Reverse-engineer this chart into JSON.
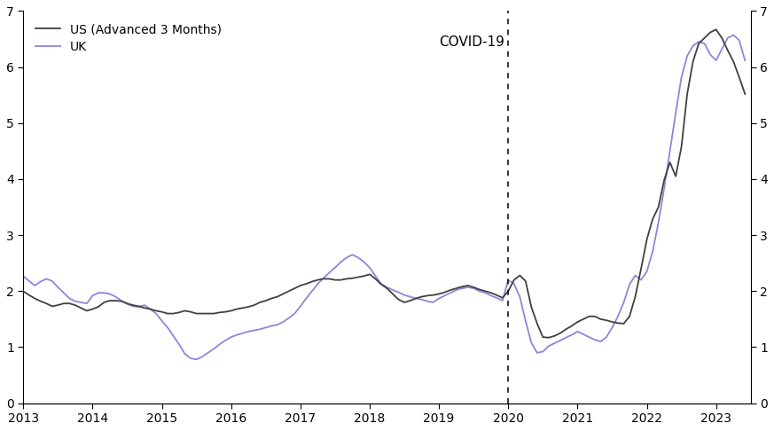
{
  "us_x": [
    2013.0,
    2013.083,
    2013.167,
    2013.25,
    2013.333,
    2013.417,
    2013.5,
    2013.583,
    2013.667,
    2013.75,
    2013.833,
    2013.917,
    2014.0,
    2014.083,
    2014.167,
    2014.25,
    2014.333,
    2014.417,
    2014.5,
    2014.583,
    2014.667,
    2014.75,
    2014.833,
    2014.917,
    2015.0,
    2015.083,
    2015.167,
    2015.25,
    2015.333,
    2015.417,
    2015.5,
    2015.583,
    2015.667,
    2015.75,
    2015.833,
    2015.917,
    2016.0,
    2016.083,
    2016.167,
    2016.25,
    2016.333,
    2016.417,
    2016.5,
    2016.583,
    2016.667,
    2016.75,
    2016.833,
    2016.917,
    2017.0,
    2017.083,
    2017.167,
    2017.25,
    2017.333,
    2017.417,
    2017.5,
    2017.583,
    2017.667,
    2017.75,
    2017.833,
    2017.917,
    2018.0,
    2018.083,
    2018.167,
    2018.25,
    2018.333,
    2018.417,
    2018.5,
    2018.583,
    2018.667,
    2018.75,
    2018.833,
    2018.917,
    2019.0,
    2019.083,
    2019.167,
    2019.25,
    2019.333,
    2019.417,
    2019.5,
    2019.583,
    2019.667,
    2019.75,
    2019.833,
    2019.917,
    2020.0,
    2020.083,
    2020.167,
    2020.25,
    2020.333,
    2020.417,
    2020.5,
    2020.583,
    2020.667,
    2020.75,
    2020.833,
    2020.917,
    2021.0,
    2021.083,
    2021.167,
    2021.25,
    2021.333,
    2021.417,
    2021.5,
    2021.583,
    2021.667,
    2021.75,
    2021.833,
    2021.917,
    2022.0,
    2022.083,
    2022.167,
    2022.25,
    2022.333,
    2022.417,
    2022.5,
    2022.583,
    2022.667,
    2022.75,
    2022.833,
    2022.917,
    2023.0,
    2023.083,
    2023.167,
    2023.25,
    2023.333,
    2023.417
  ],
  "us_y": [
    2.0,
    1.93,
    1.87,
    1.82,
    1.78,
    1.73,
    1.75,
    1.78,
    1.78,
    1.75,
    1.7,
    1.65,
    1.68,
    1.72,
    1.8,
    1.83,
    1.83,
    1.82,
    1.78,
    1.75,
    1.73,
    1.7,
    1.68,
    1.65,
    1.63,
    1.6,
    1.6,
    1.62,
    1.65,
    1.63,
    1.6,
    1.6,
    1.6,
    1.6,
    1.62,
    1.63,
    1.65,
    1.68,
    1.7,
    1.72,
    1.75,
    1.8,
    1.83,
    1.87,
    1.9,
    1.95,
    2.0,
    2.05,
    2.1,
    2.13,
    2.17,
    2.2,
    2.22,
    2.22,
    2.2,
    2.2,
    2.22,
    2.23,
    2.25,
    2.27,
    2.3,
    2.22,
    2.12,
    2.05,
    1.95,
    1.85,
    1.8,
    1.83,
    1.87,
    1.9,
    1.92,
    1.93,
    1.95,
    1.98,
    2.02,
    2.05,
    2.08,
    2.1,
    2.07,
    2.03,
    2.0,
    1.97,
    1.93,
    1.88,
    2.0,
    2.2,
    2.28,
    2.18,
    1.72,
    1.42,
    1.18,
    1.17,
    1.2,
    1.25,
    1.32,
    1.38,
    1.45,
    1.5,
    1.55,
    1.55,
    1.5,
    1.48,
    1.45,
    1.43,
    1.42,
    1.55,
    1.9,
    2.4,
    2.92,
    3.28,
    3.5,
    3.98,
    4.3,
    4.05,
    4.58,
    5.52,
    6.1,
    6.42,
    6.52,
    6.62,
    6.67,
    6.52,
    6.3,
    6.1,
    5.82,
    5.52
  ],
  "uk_x": [
    2013.0,
    2013.083,
    2013.167,
    2013.25,
    2013.333,
    2013.417,
    2013.5,
    2013.583,
    2013.667,
    2013.75,
    2013.833,
    2013.917,
    2014.0,
    2014.083,
    2014.167,
    2014.25,
    2014.333,
    2014.417,
    2014.5,
    2014.583,
    2014.667,
    2014.75,
    2014.833,
    2014.917,
    2015.0,
    2015.083,
    2015.167,
    2015.25,
    2015.333,
    2015.417,
    2015.5,
    2015.583,
    2015.667,
    2015.75,
    2015.833,
    2015.917,
    2016.0,
    2016.083,
    2016.167,
    2016.25,
    2016.333,
    2016.417,
    2016.5,
    2016.583,
    2016.667,
    2016.75,
    2016.833,
    2016.917,
    2017.0,
    2017.083,
    2017.167,
    2017.25,
    2017.333,
    2017.417,
    2017.5,
    2017.583,
    2017.667,
    2017.75,
    2017.833,
    2017.917,
    2018.0,
    2018.083,
    2018.167,
    2018.25,
    2018.333,
    2018.417,
    2018.5,
    2018.583,
    2018.667,
    2018.75,
    2018.833,
    2018.917,
    2019.0,
    2019.083,
    2019.167,
    2019.25,
    2019.333,
    2019.417,
    2019.5,
    2019.583,
    2019.667,
    2019.75,
    2019.833,
    2019.917,
    2020.0,
    2020.083,
    2020.167,
    2020.25,
    2020.333,
    2020.417,
    2020.5,
    2020.583,
    2020.667,
    2020.75,
    2020.833,
    2020.917,
    2021.0,
    2021.083,
    2021.167,
    2021.25,
    2021.333,
    2021.417,
    2021.5,
    2021.583,
    2021.667,
    2021.75,
    2021.833,
    2021.917,
    2022.0,
    2022.083,
    2022.167,
    2022.25,
    2022.333,
    2022.417,
    2022.5,
    2022.583,
    2022.667,
    2022.75,
    2022.833,
    2022.917,
    2023.0,
    2023.083,
    2023.167,
    2023.25,
    2023.333,
    2023.417
  ],
  "uk_y": [
    2.27,
    2.18,
    2.1,
    2.17,
    2.22,
    2.18,
    2.07,
    1.97,
    1.87,
    1.82,
    1.8,
    1.78,
    1.92,
    1.97,
    1.97,
    1.95,
    1.9,
    1.83,
    1.77,
    1.73,
    1.72,
    1.75,
    1.68,
    1.6,
    1.47,
    1.35,
    1.2,
    1.05,
    0.88,
    0.8,
    0.78,
    0.83,
    0.9,
    0.97,
    1.05,
    1.12,
    1.18,
    1.22,
    1.25,
    1.28,
    1.3,
    1.32,
    1.35,
    1.38,
    1.4,
    1.45,
    1.52,
    1.6,
    1.73,
    1.87,
    2.0,
    2.13,
    2.23,
    2.33,
    2.42,
    2.52,
    2.6,
    2.65,
    2.6,
    2.52,
    2.42,
    2.27,
    2.13,
    2.07,
    2.02,
    1.98,
    1.93,
    1.9,
    1.87,
    1.85,
    1.82,
    1.8,
    1.87,
    1.92,
    1.97,
    2.02,
    2.05,
    2.07,
    2.05,
    2.0,
    1.97,
    1.92,
    1.88,
    1.83,
    2.2,
    2.13,
    1.9,
    1.47,
    1.08,
    0.9,
    0.92,
    1.02,
    1.07,
    1.12,
    1.17,
    1.22,
    1.28,
    1.23,
    1.18,
    1.13,
    1.1,
    1.18,
    1.35,
    1.55,
    1.8,
    2.12,
    2.28,
    2.2,
    2.35,
    2.7,
    3.22,
    3.83,
    4.5,
    5.18,
    5.82,
    6.2,
    6.38,
    6.45,
    6.42,
    6.22,
    6.12,
    6.32,
    6.52,
    6.57,
    6.48,
    6.12
  ],
  "covid_x": 2020.0,
  "covid_label": "COVID-19",
  "us_label": "US (Advanced 3 Months)",
  "uk_label": "UK",
  "us_color": "#404040",
  "uk_color": "#8888dd",
  "ylim": [
    0,
    7
  ],
  "yticks": [
    0,
    1,
    2,
    3,
    4,
    5,
    6,
    7
  ],
  "xlim": [
    2013.0,
    2023.5
  ],
  "xticks": [
    2013,
    2014,
    2015,
    2016,
    2017,
    2018,
    2019,
    2020,
    2021,
    2022,
    2023
  ],
  "background_color": "#ffffff",
  "line_width": 1.3
}
